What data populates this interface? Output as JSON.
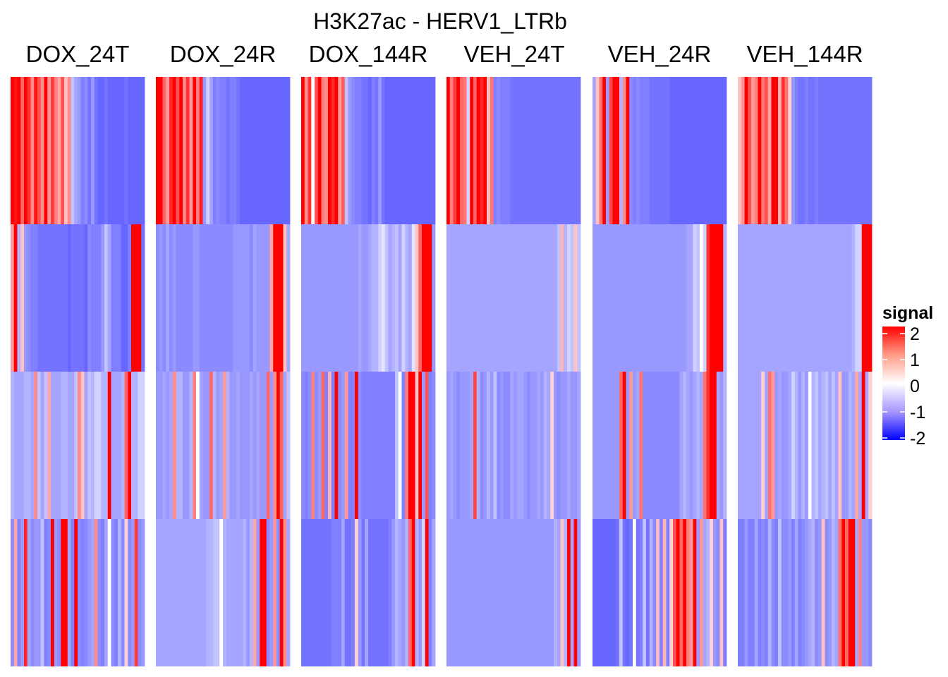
{
  "chart_data": {
    "type": "heatmap",
    "title": "H3K27ac - HERV1_LTRb",
    "columns": [
      "DOX_24T",
      "DOX_24R",
      "DOX_144R",
      "VEH_24T",
      "VEH_24R",
      "VEH_144R"
    ],
    "row_blocks": 4,
    "colorscale": {
      "low": "#0000ff",
      "mid": "#ffffff",
      "high": "#ff0000",
      "domain": [
        -2,
        2
      ]
    },
    "legend": {
      "title": "signal",
      "ticks": [
        "2",
        "1",
        "0",
        "-1",
        "-2"
      ],
      "position": "right"
    },
    "signal": [
      [
        [
          2.0,
          1.8,
          2.0,
          1.0,
          2.0,
          1.5,
          0.7,
          1.8,
          1.2,
          0.7,
          2.0,
          0.6,
          1.4,
          0.8,
          0.5,
          1.2,
          0.3,
          0.7,
          -0.3,
          -0.5,
          -0.6,
          -0.8,
          -0.7,
          -0.9,
          -0.6,
          -0.9,
          -1.0,
          -1.0,
          -0.9,
          -1.0,
          -1.0,
          -1.0,
          -1.0,
          -1.0,
          -0.9,
          -1.0,
          -1.0,
          -1.0,
          -1.0,
          -1.0
        ],
        [
          0.6,
          2.0,
          -0.4,
          0.3,
          -0.6,
          -0.7,
          -0.8,
          -0.8,
          -0.9,
          -0.9,
          -0.9,
          -0.9,
          -0.9,
          -0.9,
          -0.9,
          -0.9,
          -0.9,
          -1.0,
          -0.9,
          -0.9,
          -0.9,
          -0.9,
          -1.0,
          -0.7,
          -0.8,
          -0.8,
          -0.8,
          -0.6,
          -0.3,
          -0.5,
          -0.8,
          -0.8,
          -0.8,
          -1.0,
          -1.0,
          -0.8,
          2.0,
          2.0,
          2.0,
          -0.9
        ],
        [
          -0.4,
          -0.5,
          -0.5,
          -0.5,
          -0.4,
          -0.4,
          -0.5,
          0.7,
          -0.3,
          -0.5,
          -0.3,
          0.5,
          -0.5,
          -0.5,
          -0.5,
          -0.4,
          -0.4,
          -0.5,
          -0.5,
          -0.3,
          0.7,
          0.3,
          -0.5,
          -0.3,
          -0.4,
          -0.2,
          -0.2,
          -0.4,
          -0.4,
          2.0,
          -0.5,
          -0.5,
          -0.5,
          -0.4,
          1.0,
          2.0,
          -0.4,
          -0.4,
          -0.2,
          -0.2
        ],
        [
          -0.7,
          0.5,
          -0.8,
          -0.6,
          1.6,
          -0.5,
          -0.7,
          -0.6,
          -0.6,
          -0.3,
          -0.8,
          -0.7,
          2.0,
          -0.6,
          -0.7,
          2.0,
          2.0,
          -0.5,
          -0.8,
          2.0,
          -0.7,
          -0.8,
          -0.7,
          -0.6,
          -0.5,
          0.7,
          -0.7,
          -0.8,
          -0.5,
          0.0,
          -0.7,
          -0.8,
          -0.4,
          -0.7,
          0.2,
          -0.7,
          -0.6,
          1.4,
          -0.7,
          -0.6
        ]
      ],
      [
        [
          2.0,
          2.0,
          1.0,
          0.6,
          1.6,
          2.0,
          1.2,
          2.0,
          0.7,
          1.5,
          0.6,
          2.0,
          0.8,
          1.7,
          -0.6,
          -0.2,
          -0.5,
          -0.8,
          -0.7,
          -0.8,
          -0.8,
          -0.9,
          -0.8,
          -0.8,
          -0.9,
          -1.0,
          -1.0,
          -1.0,
          -1.0,
          -1.0,
          -1.0,
          -1.0,
          -1.0,
          -1.0,
          -1.0,
          -1.0,
          -1.0,
          -1.0,
          -1.0,
          -1.0
        ],
        [
          -0.7,
          -0.6,
          -0.7,
          -0.5,
          -0.7,
          -0.6,
          -0.7,
          -0.7,
          -0.7,
          -0.7,
          -0.7,
          -0.6,
          -0.6,
          -0.7,
          -0.7,
          -0.7,
          -0.7,
          -0.7,
          -0.7,
          -0.7,
          -0.7,
          -0.7,
          -0.7,
          -0.6,
          -0.6,
          -0.6,
          -0.6,
          -0.6,
          -0.7,
          -0.5,
          -0.6,
          -0.6,
          -0.6,
          -0.6,
          0.5,
          2.0,
          2.0,
          2.0,
          0.3,
          -0.5
        ],
        [
          -0.6,
          -0.6,
          -0.5,
          -0.6,
          -0.5,
          0.7,
          -0.4,
          -0.4,
          -0.6,
          -0.6,
          -0.4,
          0.8,
          0.0,
          -0.5,
          -0.6,
          -0.6,
          1.0,
          -0.4,
          -0.6,
          -0.5,
          0.6,
          -0.4,
          -0.6,
          -0.6,
          -0.5,
          -0.6,
          -0.6,
          -0.6,
          -0.5,
          -0.6,
          -0.5,
          -0.6,
          -0.6,
          1.0,
          -0.6,
          0.7,
          2.0,
          1.0,
          -0.5,
          -0.3
        ],
        [
          -0.5,
          -0.5,
          -0.5,
          -0.5,
          -0.5,
          -0.5,
          -0.5,
          -0.5,
          -0.5,
          -0.5,
          -0.5,
          -0.5,
          -0.5,
          -0.5,
          -0.5,
          -0.4,
          -0.4,
          -0.3,
          -0.3,
          0.0,
          -0.4,
          -0.5,
          -0.5,
          -0.5,
          -0.5,
          -0.5,
          -0.4,
          -0.6,
          -0.4,
          0.5,
          -0.6,
          2.0,
          2.0,
          -0.7,
          -0.6,
          0.6,
          -0.7,
          2.0,
          0.7,
          -0.5
        ]
      ],
      [
        [
          2.0,
          0.7,
          1.5,
          0.0,
          1.2,
          2.0,
          0.8,
          0.7,
          2.0,
          1.6,
          2.0,
          0.6,
          1.1,
          -0.3,
          -0.6,
          -0.7,
          -0.8,
          -0.8,
          -0.9,
          -0.9,
          -1.0,
          -0.8,
          -0.9,
          -0.6,
          -0.9,
          -1.0,
          -1.0,
          -1.0,
          -1.0,
          -1.0,
          -1.0,
          -1.0,
          -1.0,
          -1.0,
          -1.0,
          -1.0,
          -1.0,
          -1.0,
          -1.0,
          -1.0
        ],
        [
          -0.6,
          -0.6,
          -0.6,
          -0.6,
          -0.6,
          -0.6,
          -0.6,
          -0.6,
          -0.6,
          -0.6,
          -0.6,
          -0.6,
          -0.6,
          -0.6,
          -0.6,
          -0.6,
          -0.6,
          -0.5,
          -0.6,
          -0.6,
          -0.5,
          -0.4,
          -0.4,
          -0.2,
          -0.1,
          -0.3,
          -0.5,
          -0.4,
          -0.3,
          -0.5,
          -0.2,
          -0.4,
          -0.5,
          -0.1,
          0.3,
          1.0,
          2.0,
          2.0,
          2.0,
          -0.6
        ],
        [
          -0.7,
          -0.8,
          -0.7,
          0.8,
          -0.7,
          -0.6,
          1.0,
          -0.8,
          0.4,
          -0.8,
          2.0,
          -0.7,
          -0.6,
          0.6,
          -0.8,
          -0.8,
          2.0,
          -0.7,
          -0.8,
          -0.8,
          -0.8,
          -0.8,
          -0.8,
          -0.8,
          -0.8,
          -0.8,
          -0.8,
          -0.8,
          -0.3,
          0.0,
          -0.8,
          0.8,
          2.0,
          2.0,
          0.3,
          2.0,
          -0.6,
          1.2,
          -0.8,
          -0.7
        ],
        [
          -0.9,
          -0.9,
          -0.9,
          -0.9,
          -0.9,
          -0.9,
          -0.9,
          -0.9,
          -0.9,
          -0.8,
          -0.8,
          -0.8,
          -0.5,
          -0.9,
          -0.9,
          -0.8,
          0.2,
          -0.6,
          -0.9,
          -0.5,
          -0.9,
          -0.9,
          -0.9,
          -0.9,
          -0.9,
          -0.9,
          -0.8,
          -0.6,
          -0.4,
          -0.5,
          -0.6,
          -0.4,
          1.0,
          2.0,
          -0.4,
          -0.6,
          -0.2,
          2.0,
          -0.8,
          -0.5
        ]
      ],
      [
        [
          2.0,
          0.8,
          1.4,
          2.0,
          1.0,
          0.9,
          -0.2,
          2.0,
          1.0,
          2.0,
          1.6,
          2.0,
          0.3,
          0.9,
          -0.8,
          -0.7,
          -0.8,
          -0.8,
          -0.8,
          -0.9,
          -0.9,
          -0.9,
          -0.9,
          -0.9,
          -0.9,
          -0.9,
          -0.9,
          -0.9,
          -0.9,
          -0.9,
          -0.9,
          -0.9,
          -0.9,
          -0.9,
          -0.9,
          -0.9,
          -0.9,
          -0.9,
          -0.9,
          -0.9
        ],
        [
          -0.5,
          -0.5,
          -0.5,
          -0.5,
          -0.5,
          -0.5,
          -0.5,
          -0.5,
          -0.5,
          -0.5,
          -0.5,
          -0.5,
          -0.5,
          -0.5,
          -0.5,
          -0.5,
          -0.5,
          -0.5,
          -0.5,
          -0.5,
          -0.5,
          -0.5,
          -0.5,
          -0.5,
          -0.5,
          -0.5,
          -0.5,
          -0.5,
          -0.5,
          -0.5,
          -0.5,
          -0.5,
          -0.5,
          -0.3,
          0.4,
          -0.4,
          -0.2,
          -0.3,
          0.3,
          -0.3
        ],
        [
          -0.6,
          -0.5,
          -0.6,
          -0.7,
          -0.6,
          -0.6,
          -0.6,
          -0.5,
          1.3,
          -0.4,
          -0.7,
          -0.6,
          -0.4,
          -0.6,
          -0.3,
          -0.7,
          -0.6,
          -0.7,
          -0.7,
          -0.5,
          -0.6,
          -0.5,
          -0.5,
          -0.6,
          -0.7,
          -0.6,
          -0.6,
          -0.5,
          -0.6,
          -0.4,
          -0.5,
          0.2,
          -0.6,
          -0.7,
          -0.6,
          -0.6,
          -0.5,
          -0.6,
          -0.6,
          -0.5
        ],
        [
          -0.6,
          -0.6,
          -0.6,
          -0.6,
          -0.6,
          -0.6,
          -0.6,
          -0.6,
          -0.6,
          -0.6,
          -0.6,
          -0.6,
          -0.6,
          -0.6,
          -0.6,
          -0.6,
          -0.6,
          -0.6,
          -0.6,
          -0.6,
          -0.6,
          -0.6,
          -0.6,
          -0.6,
          -0.6,
          -0.6,
          -0.6,
          -0.6,
          -0.6,
          -0.6,
          -0.6,
          -0.6,
          -0.4,
          -0.5,
          0.3,
          -0.4,
          2.0,
          -0.5,
          2.0,
          -0.6
        ]
      ],
      [
        [
          -0.5,
          0.3,
          0.9,
          2.0,
          -0.6,
          1.3,
          2.0,
          2.0,
          -0.4,
          0.7,
          2.0,
          -0.7,
          -0.8,
          -0.7,
          -0.8,
          -0.8,
          -0.8,
          -0.9,
          -0.9,
          -0.9,
          -0.9,
          -0.9,
          -0.9,
          -1.0,
          -1.0,
          -1.0,
          -1.0,
          -1.0,
          -1.0,
          -1.0,
          -1.0,
          -1.0,
          -1.0,
          -1.0,
          -1.0,
          -1.0,
          -1.0,
          -1.0,
          -1.0,
          -1.0
        ],
        [
          -0.6,
          -0.6,
          -0.6,
          -0.6,
          -0.6,
          -0.6,
          -0.6,
          -0.6,
          -0.6,
          -0.6,
          -0.6,
          -0.6,
          -0.6,
          -0.6,
          -0.6,
          -0.6,
          -0.6,
          -0.6,
          -0.6,
          -0.6,
          -0.6,
          -0.6,
          -0.6,
          -0.6,
          -0.6,
          -0.6,
          -0.6,
          -0.6,
          -0.5,
          -0.5,
          -0.2,
          -0.3,
          0.0,
          -0.2,
          1.5,
          2.0,
          2.0,
          2.0,
          2.0,
          -0.4
        ],
        [
          -0.6,
          -0.6,
          -0.6,
          -0.6,
          -0.6,
          -0.6,
          -0.6,
          -0.6,
          1.0,
          2.0,
          -0.6,
          0.6,
          -0.6,
          -0.5,
          0.9,
          -0.7,
          -0.7,
          -0.7,
          -0.7,
          -0.7,
          -0.7,
          -0.7,
          -0.7,
          -0.7,
          -0.7,
          -0.7,
          -0.5,
          -0.4,
          -0.5,
          -0.6,
          -0.5,
          -0.4,
          -0.5,
          0.9,
          1.5,
          2.0,
          2.0,
          -0.5,
          -0.6,
          -0.4
        ],
        [
          -1.0,
          -1.0,
          -1.0,
          -1.0,
          -1.0,
          -1.0,
          -1.0,
          -0.9,
          -0.3,
          -0.9,
          -1.0,
          -0.9,
          0.0,
          -0.9,
          -0.8,
          -0.3,
          -0.9,
          -0.4,
          -0.7,
          0.3,
          -0.8,
          0.4,
          -0.8,
          0.2,
          1.2,
          2.0,
          1.0,
          2.0,
          0.8,
          0.6,
          2.0,
          -0.6,
          0.6,
          -0.5,
          -0.4,
          0.2,
          -0.6,
          -0.7,
          0.3,
          -0.8
        ]
      ],
      [
        [
          0.3,
          0.6,
          2.0,
          1.2,
          0.6,
          0.8,
          2.0,
          0.9,
          1.2,
          0.5,
          2.0,
          2.0,
          0.4,
          1.5,
          0.9,
          0.2,
          -0.6,
          -0.8,
          -0.9,
          -0.9,
          -0.8,
          -0.9,
          -0.9,
          -0.8,
          -0.9,
          -0.9,
          -0.9,
          -0.9,
          -0.9,
          -0.9,
          -0.9,
          -0.9,
          -0.9,
          -0.9,
          -0.9,
          -0.9,
          -0.9,
          -0.9,
          -0.9,
          -0.9
        ],
        [
          -0.5,
          -0.5,
          -0.5,
          -0.5,
          -0.5,
          -0.5,
          -0.5,
          -0.5,
          -0.5,
          -0.5,
          -0.5,
          -0.5,
          -0.5,
          -0.5,
          -0.5,
          -0.5,
          -0.5,
          -0.5,
          -0.5,
          -0.5,
          -0.5,
          -0.5,
          -0.5,
          -0.5,
          -0.5,
          -0.5,
          -0.5,
          -0.5,
          -0.5,
          -0.5,
          -0.5,
          -0.5,
          -0.5,
          -0.5,
          -0.4,
          -0.2,
          -0.2,
          2.0,
          2.0,
          2.0
        ],
        [
          -0.5,
          -0.5,
          -0.5,
          -0.5,
          -0.5,
          -0.5,
          -0.5,
          0.2,
          -0.5,
          0.9,
          0.6,
          -0.6,
          -0.5,
          -0.6,
          -0.6,
          -0.5,
          -0.2,
          -0.4,
          -0.6,
          -0.4,
          -0.6,
          0.0,
          -0.4,
          -0.3,
          -0.5,
          -0.4,
          -0.3,
          -0.5,
          -0.3,
          -0.5,
          0.3,
          -0.6,
          -0.6,
          -0.4,
          -0.5,
          0.5,
          -0.5,
          2.0,
          -0.5,
          0.2
        ],
        [
          -0.8,
          -0.8,
          -0.6,
          -0.8,
          -0.8,
          -0.5,
          -0.8,
          -0.7,
          -0.8,
          -0.4,
          -0.7,
          -0.8,
          -0.3,
          -0.7,
          -0.7,
          -0.6,
          -0.8,
          -0.5,
          -0.8,
          -0.7,
          -0.6,
          -0.5,
          -0.4,
          -0.7,
          -0.6,
          0.3,
          -0.7,
          -0.6,
          -0.4,
          -0.5,
          0.9,
          2.0,
          1.0,
          2.0,
          2.0,
          -0.5,
          0.8,
          -0.6,
          -0.6,
          -0.7
        ]
      ]
    ]
  }
}
